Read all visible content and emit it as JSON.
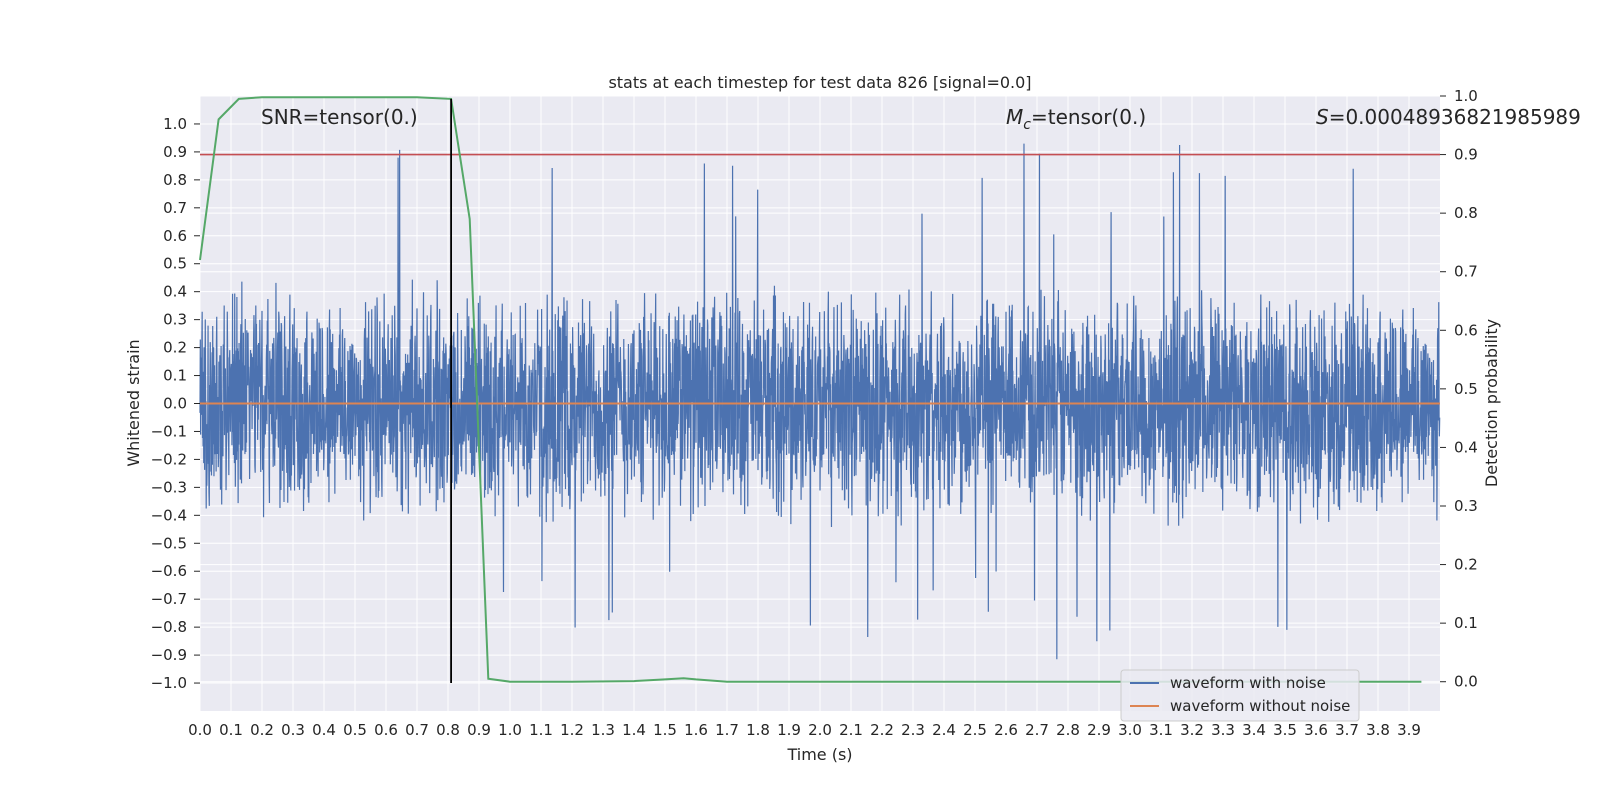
{
  "chart_data": {
    "type": "line",
    "title": "stats at each timestep for test data 826 [signal=0.0]",
    "xlabel": "Time (s)",
    "ylabel": "Whitened strain",
    "y2label": "Detection probability",
    "xlim": [
      0.0,
      4.0
    ],
    "ylim": [
      -1.1,
      1.1
    ],
    "y2lim": [
      -0.05,
      1.0
    ],
    "x_ticks": [
      "0.0",
      "0.1",
      "0.2",
      "0.3",
      "0.4",
      "0.5",
      "0.6",
      "0.7",
      "0.8",
      "0.9",
      "1.0",
      "1.1",
      "1.2",
      "1.3",
      "1.4",
      "1.5",
      "1.6",
      "1.7",
      "1.8",
      "1.9",
      "2.0",
      "2.1",
      "2.2",
      "2.3",
      "2.4",
      "2.5",
      "2.6",
      "2.7",
      "2.8",
      "2.9",
      "3.0",
      "3.1",
      "3.2",
      "3.3",
      "3.4",
      "3.5",
      "3.6",
      "3.7",
      "3.8",
      "3.9"
    ],
    "y_ticks": [
      "1.0",
      "0.9",
      "0.8",
      "0.7",
      "0.6",
      "0.5",
      "0.4",
      "0.3",
      "0.2",
      "0.1",
      "0.0",
      "−0.1",
      "−0.2",
      "−0.3",
      "−0.4",
      "−0.5",
      "−0.6",
      "−0.7",
      "−0.8",
      "−0.9",
      "−1.0"
    ],
    "y2_ticks": [
      "1.0",
      "0.9",
      "0.8",
      "0.7",
      "0.6",
      "0.5",
      "0.4",
      "0.3",
      "0.2",
      "0.1",
      "0.0"
    ],
    "annotations": {
      "snr": "SNR=tensor(0.)",
      "mc_symbol": "M",
      "mc_sub": "c",
      "mc_text": "=tensor(0.)",
      "s_symbol": "S",
      "s_text": "=0.00048936821985989"
    },
    "threshold_y2": 0.9,
    "marker_x": 0.81,
    "series": [
      {
        "name": "waveform with noise",
        "color": "#4c72b0",
        "axis": "left",
        "kind": "noise",
        "n_samples": 4000,
        "typical_range": [
          -0.45,
          0.45
        ],
        "peak_range": [
          -0.95,
          0.95
        ]
      },
      {
        "name": "waveform without noise",
        "color": "#dd8452",
        "axis": "left",
        "x": [
          0.0,
          4.0
        ],
        "values": [
          0.0,
          0.0
        ]
      },
      {
        "name": "detection probability",
        "color": "#55a868",
        "axis": "right",
        "x": [
          0.0,
          0.06,
          0.125,
          0.2,
          0.3,
          0.5,
          0.7,
          0.81,
          0.87,
          0.93,
          1.0,
          1.2,
          1.4,
          1.5,
          1.56,
          1.6,
          1.7,
          2.0,
          3.0,
          3.94
        ],
        "values": [
          0.72,
          0.96,
          0.995,
          0.998,
          0.998,
          0.998,
          0.998,
          0.995,
          0.79,
          0.005,
          0.0,
          0.0,
          0.001,
          0.004,
          0.006,
          0.004,
          0.0,
          0.0,
          0.0,
          0.0
        ]
      },
      {
        "name": "threshold",
        "color": "#c44e52",
        "axis": "right",
        "values": [
          0.9
        ]
      }
    ],
    "legend": {
      "position": "lower-right",
      "entries": [
        "waveform with noise",
        "waveform without noise"
      ]
    },
    "grid": true
  }
}
